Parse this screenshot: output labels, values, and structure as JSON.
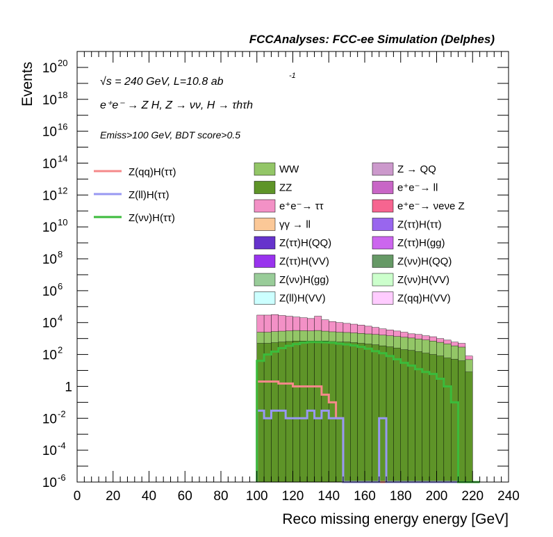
{
  "header": {
    "title": "FCCAnalyses: FCC-ee Simulation (Delphes)"
  },
  "annotations": {
    "energy_lumi": "√s = 240 GeV, L=10.8 ab",
    "lumi_exponent": "-1",
    "process": "e⁺e⁻ → Z H, Z → νν, H → τhτh",
    "cuts": "Emiss>100 GeV, BDT score>0.5"
  },
  "chart_data": {
    "type": "histogram-stacked-log",
    "xlabel": "Reco missing energy energy [GeV]",
    "ylabel": "Events",
    "xlim": [
      0,
      240
    ],
    "ylim": [
      1e-06,
      1e+21
    ],
    "log_y": true,
    "x_ticks": [
      "0",
      "20",
      "40",
      "60",
      "80",
      "100",
      "120",
      "140",
      "160",
      "180",
      "200",
      "220",
      "240"
    ],
    "y_ticks": [
      {
        "base": "10",
        "exp": "-6",
        "value": 1e-06
      },
      {
        "base": "10",
        "exp": "-4",
        "value": 0.0001
      },
      {
        "base": "10",
        "exp": "-2",
        "value": 0.01
      },
      {
        "base": "1",
        "exp": "",
        "value": 1
      },
      {
        "base": "10",
        "exp": "2",
        "value": 100.0
      },
      {
        "base": "10",
        "exp": "4",
        "value": 10000.0
      },
      {
        "base": "10",
        "exp": "6",
        "value": 1000000.0
      },
      {
        "base": "10",
        "exp": "8",
        "value": 100000000.0
      },
      {
        "base": "10",
        "exp": "10",
        "value": 10000000000.0
      },
      {
        "base": "10",
        "exp": "12",
        "value": 1000000000000.0
      },
      {
        "base": "10",
        "exp": "14",
        "value": 100000000000000.0
      },
      {
        "base": "10",
        "exp": "16",
        "value": 1e+16
      },
      {
        "base": "10",
        "exp": "18",
        "value": 1e+18
      },
      {
        "base": "10",
        "exp": "20",
        "value": 1e+20
      }
    ],
    "grid": false,
    "bin_edges": [
      100,
      104,
      108,
      112,
      116,
      120,
      124,
      128,
      132,
      136,
      140,
      144,
      148,
      152,
      156,
      160,
      164,
      168,
      172,
      176,
      180,
      184,
      188,
      192,
      196,
      200,
      204,
      208,
      212,
      216,
      220,
      224
    ],
    "stack_totals": [
      30000.0,
      30000.0,
      32000.0,
      28000.0,
      25000.0,
      22000.0,
      20000.0,
      18000.0,
      25000.0,
      15000.0,
      12000.0,
      10000.0,
      9000.0,
      8000.0,
      7000.0,
      6000.0,
      5000.0,
      4000.0,
      3500.0,
      3000.0,
      2500.0,
      2000.0,
      1800.0,
      1500.0,
      1300.0,
      1000.0,
      800.0,
      600.0,
      500.0,
      80.0,
      0
    ],
    "stacked_series": [
      {
        "name": "ZZ",
        "color": "#5e9428",
        "values": [
          500.0,
          500.0,
          550.0,
          600.0,
          650.0,
          700.0,
          700.0,
          700.0,
          700.0,
          700.0,
          650.0,
          600.0,
          600.0,
          550.0,
          500.0,
          450.0,
          400.0,
          350.0,
          300.0,
          250.0,
          200.0,
          180.0,
          150.0,
          120.0,
          100.0,
          80.0,
          60.0,
          50.0,
          40.0,
          8,
          0
        ]
      },
      {
        "name": "WW",
        "color": "#93c667",
        "values": [
          2000.0,
          2000.0,
          2200.0,
          2300.0,
          2400.0,
          2500.0,
          2400.0,
          2300.0,
          2500.0,
          2200.0,
          2000.0,
          1900.0,
          1800.0,
          1700.0,
          1600.0,
          1500.0,
          1400.0,
          1300.0,
          1200.0,
          1100.0,
          1000.0,
          900.0,
          800.0,
          700.0,
          600.0,
          500.0,
          400.0,
          300.0,
          250.0,
          40.0,
          0
        ]
      },
      {
        "name": "e⁺e⁻→ ττ",
        "color": "#f391c6",
        "values": [
          27000.0,
          27000.0,
          29000.0,
          25000.0,
          22000.0,
          19000.0,
          17000.0,
          15000.0,
          22000.0,
          12000.0,
          9000.0,
          7500.0,
          6500.0,
          5700.0,
          4900.0,
          4000.0,
          3200.0,
          2400.0,
          2000.0,
          1600.0,
          1300.0,
          900.0,
          850.0,
          680.0,
          600.0,
          420.0,
          340.0,
          250.0,
          210.0,
          32.0,
          0
        ]
      }
    ],
    "overlay_series": [
      {
        "name": "Z(qq)H(ττ)",
        "color": "#f5898a",
        "values": [
          2,
          2,
          2,
          1.5,
          1.5,
          1,
          1,
          1,
          1,
          0.3,
          0.1,
          0.01,
          1e-07,
          1e-07,
          1e-07,
          1e-07,
          1e-07,
          1e-07,
          1e-07,
          1e-07,
          1e-07,
          1e-07,
          1e-07,
          1e-07,
          1e-07,
          1e-07,
          1e-07,
          1e-07,
          1e-07,
          1e-07,
          1e-07
        ]
      },
      {
        "name": "Z(ll)H(ττ)",
        "color": "#9898f2",
        "values": [
          0.03,
          0.01,
          0.03,
          0.03,
          0.01,
          0.01,
          0.01,
          0.03,
          0.01,
          0.03,
          0.01,
          0.01,
          1e-07,
          1e-07,
          1e-07,
          1e-07,
          1e-07,
          0.01,
          1e-07,
          1e-07,
          1e-07,
          1e-07,
          1e-07,
          1e-07,
          1e-07,
          1e-07,
          1e-07,
          1e-07,
          1e-07,
          1e-07,
          1e-07
        ]
      },
      {
        "name": "Z(νν)H(ττ)",
        "color": "#3bbb3b",
        "values": [
          40,
          100,
          150,
          250,
          350,
          450,
          550,
          600,
          600,
          580,
          550,
          480,
          430,
          370,
          300,
          230,
          160,
          120,
          80,
          50,
          30,
          20,
          12,
          8,
          6,
          3,
          1,
          0.1,
          1e-07,
          1e-07,
          1e-07
        ]
      }
    ],
    "legend_left": [
      {
        "name": "Z(qq)H(ττ)",
        "color": "#f5898a"
      },
      {
        "name": "Z(ll)H(ττ)",
        "color": "#9898f2"
      },
      {
        "name": "Z(νν)H(ττ)",
        "color": "#3bbb3b"
      }
    ],
    "legend_fill": [
      {
        "name": "WW",
        "color": "#93c667"
      },
      {
        "name": "Z → QQ",
        "color": "#cc99cc"
      },
      {
        "name": "ZZ",
        "color": "#5e9428"
      },
      {
        "name": "e⁺e⁻→ ll",
        "color": "#c866c6"
      },
      {
        "name": "e⁺e⁻→ ττ",
        "color": "#f391c6"
      },
      {
        "name": "e⁺e⁻→ νeνe Z",
        "color": "#f66590"
      },
      {
        "name": "γγ → ll",
        "color": "#fbc897"
      },
      {
        "name": "Z(ττ)H(ττ)",
        "color": "#9966ee"
      },
      {
        "name": "Z(ττ)H(QQ)",
        "color": "#6633cc"
      },
      {
        "name": "Z(ττ)H(gg)",
        "color": "#cc66ee"
      },
      {
        "name": "Z(ττ)H(VV)",
        "color": "#9933ee"
      },
      {
        "name": "Z(νν)H(QQ)",
        "color": "#669966"
      },
      {
        "name": "Z(νν)H(gg)",
        "color": "#99cc99"
      },
      {
        "name": "Z(νν)H(VV)",
        "color": "#ccffcc"
      },
      {
        "name": "Z(ll)H(VV)",
        "color": "#ccffff"
      },
      {
        "name": "Z(qq)H(VV)",
        "color": "#ffccff"
      }
    ]
  }
}
